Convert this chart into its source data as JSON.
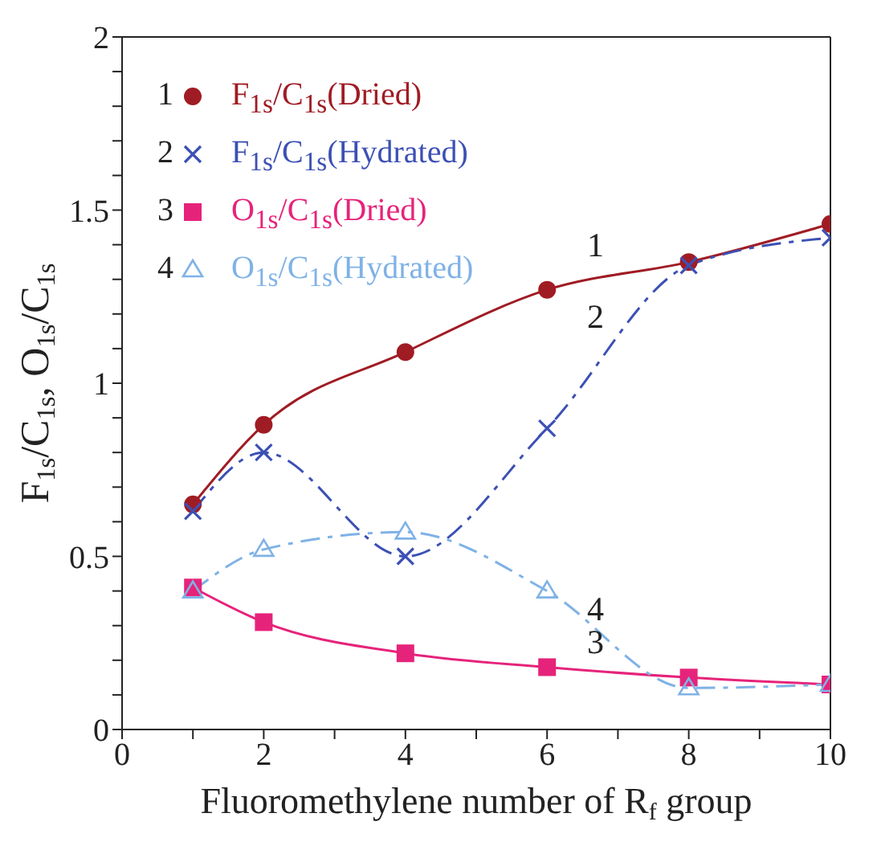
{
  "chart_data": {
    "type": "line",
    "xlabel": "Fluoromethylene number of R$_{f}$ group",
    "ylabel": "F$_{1s}$/C$_{1s}$, O$_{1s}$/C$_{1s}$",
    "x": [
      1,
      2,
      4,
      6,
      8,
      10
    ],
    "series": [
      {
        "name": "F$_{1s}$/C$_{1s}$(Dried)",
        "color": "#a01c24",
        "marker": "circle",
        "line_style": "solid",
        "values": [
          0.65,
          0.88,
          1.09,
          1.27,
          1.35,
          1.46
        ]
      },
      {
        "name": "F$_{1s}$/C$_{1s}$(Hydrated)",
        "color": "#3c50b4",
        "marker": "cross",
        "line_style": "dashed",
        "values": [
          0.63,
          0.8,
          0.5,
          0.87,
          1.34,
          1.42
        ]
      },
      {
        "name": "O$_{1s}$/C$_{1s}$(Dried)",
        "color": "#e6237a",
        "marker": "square",
        "line_style": "solid",
        "values": [
          0.41,
          0.31,
          0.22,
          0.18,
          0.15,
          0.13
        ]
      },
      {
        "name": "O$_{1s}$/C$_{1s}$(Hydrated)",
        "color": "#7fb2e6",
        "marker": "triangle",
        "line_style": "dashed",
        "values": [
          0.4,
          0.52,
          0.57,
          0.4,
          0.12,
          0.13
        ]
      }
    ],
    "xlim": [
      0,
      10
    ],
    "xticks": [
      0,
      {
        "value": 1,
        "label": null
      },
      2,
      {
        "value": 3,
        "label": null
      },
      4,
      {
        "value": 5,
        "label": null
      },
      6,
      {
        "value": 7,
        "label": null
      },
      8,
      {
        "value": 9,
        "label": null
      },
      10
    ],
    "ylim": [
      0,
      2
    ],
    "yticks": [
      0,
      {
        "value": 0.1,
        "label": null
      },
      {
        "value": 0.2,
        "label": null
      },
      {
        "value": 0.3,
        "label": null
      },
      {
        "value": 0.4,
        "label": null
      },
      0.5,
      {
        "value": 0.6,
        "label": null
      },
      {
        "value": 0.7,
        "label": null
      },
      {
        "value": 0.8,
        "label": null
      },
      {
        "value": 0.9,
        "label": null
      },
      1,
      {
        "value": 1.1,
        "label": null
      },
      {
        "value": 1.2,
        "label": null
      },
      {
        "value": 1.3,
        "label": null
      },
      {
        "value": 1.4,
        "label": null
      },
      1.5,
      {
        "value": 1.6,
        "label": null
      },
      {
        "value": 1.7,
        "label": null
      },
      {
        "value": 1.8,
        "label": null
      },
      {
        "value": 1.9,
        "label": null
      },
      2
    ],
    "annotations": [
      "1",
      "2",
      "3",
      "4"
    ],
    "legend": "top left",
    "grid": false
  }
}
